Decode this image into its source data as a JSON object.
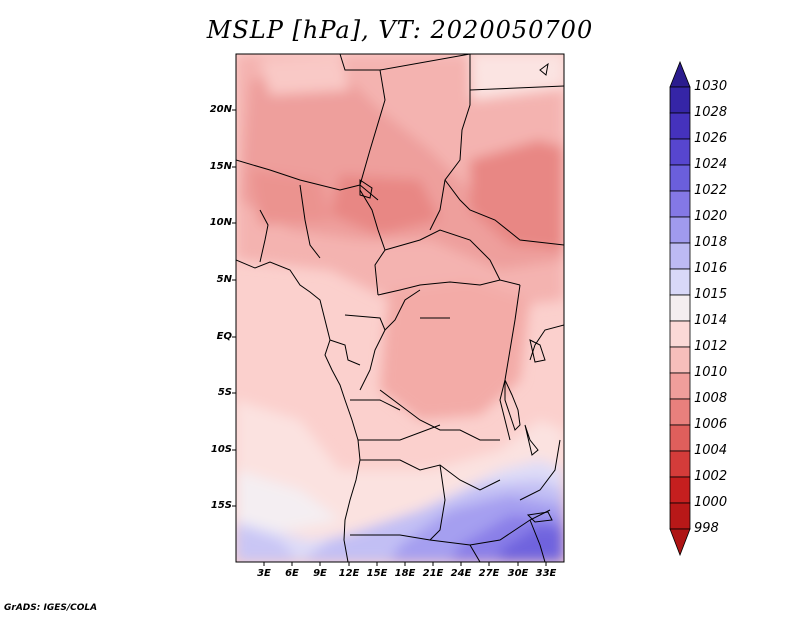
{
  "title": "MSLP [hPa], VT: 2020050700",
  "footer": "GrADS: IGES/COLA",
  "map": {
    "lat_labels": [
      "20N",
      "15N",
      "10N",
      "5N",
      "EQ",
      "5S",
      "10S",
      "15S"
    ],
    "lon_labels": [
      "3E",
      "6E",
      "9E",
      "12E",
      "15E",
      "18E",
      "21E",
      "24E",
      "27E",
      "30E",
      "33E"
    ],
    "region": {
      "lon_min": 0,
      "lon_max": 35,
      "lat_min": -20,
      "lat_max": 25
    }
  },
  "colorbar": {
    "levels": [
      "1030",
      "1028",
      "1026",
      "1024",
      "1022",
      "1020",
      "1018",
      "1016",
      "1015",
      "1014",
      "1012",
      "1010",
      "1008",
      "1006",
      "1004",
      "1002",
      "1000",
      "998"
    ],
    "colors": [
      "#2b1c8e",
      "#3525a6",
      "#4532bd",
      "#5746cf",
      "#6b5fdc",
      "#8478e6",
      "#a09aee",
      "#bdbaf3",
      "#d9d8f8",
      "#f5eef0",
      "#fbd9d6",
      "#f7bebb",
      "#f09e9b",
      "#e8807d",
      "#df5f5c",
      "#d43c3a",
      "#c51f1f",
      "#ae1414"
    ]
  }
}
